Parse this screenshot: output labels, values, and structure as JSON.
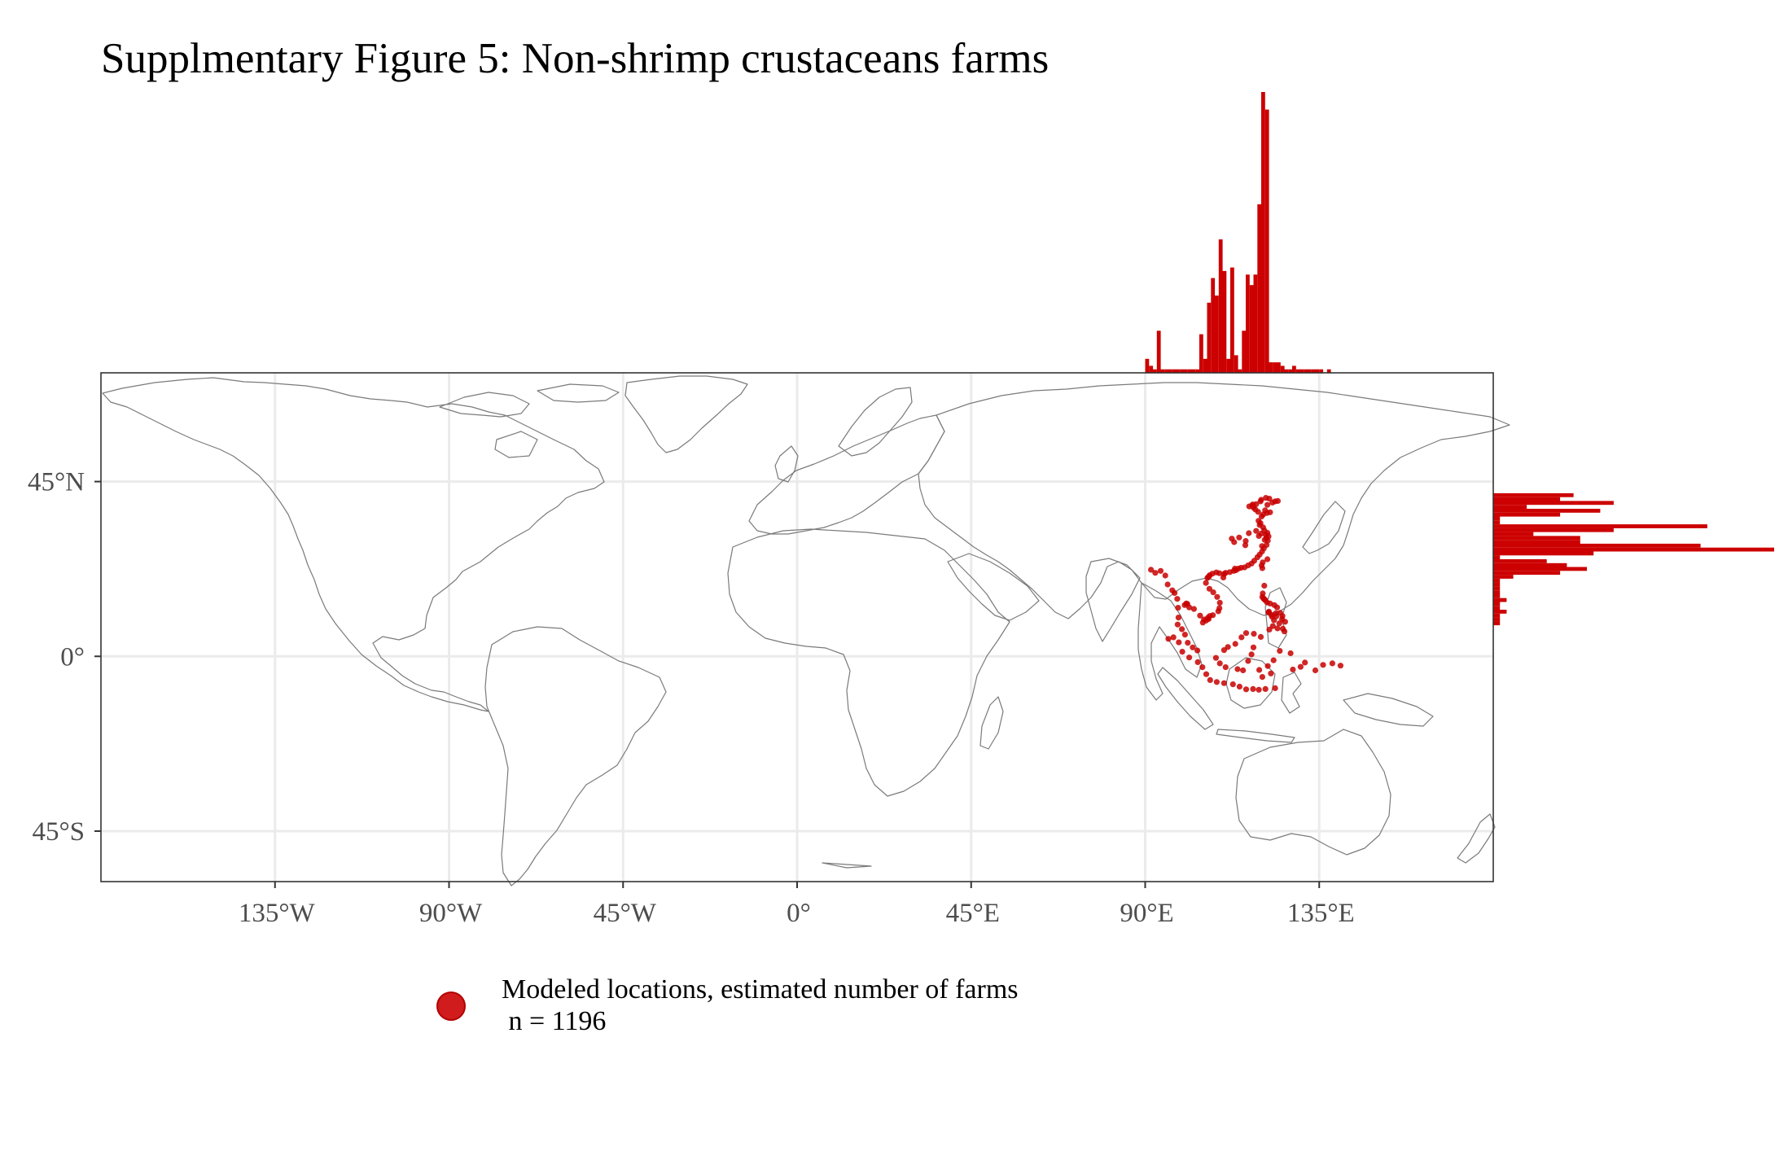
{
  "title": "Supplmentary Figure 5: Non-shrimp crustaceans farms",
  "colors": {
    "points": "#c80000",
    "bars": "#cc0000",
    "grid": "#ebebeb",
    "coast": "#7a7a7a",
    "panel_border": "#333333"
  },
  "chart_data": {
    "type": "scatter",
    "map_extent": {
      "lon": [
        -180,
        180
      ],
      "lat": [
        -58,
        73
      ]
    },
    "x_ticks": [
      {
        "value": -135,
        "label": "135°W"
      },
      {
        "value": -90,
        "label": "90°W"
      },
      {
        "value": -45,
        "label": "45°W"
      },
      {
        "value": 0,
        "label": "0°"
      },
      {
        "value": 45,
        "label": "45°E"
      },
      {
        "value": 90,
        "label": "90°E"
      },
      {
        "value": 135,
        "label": "135°E"
      }
    ],
    "y_ticks": [
      {
        "value": 45,
        "label": "45°N"
      },
      {
        "value": 0,
        "label": "0°"
      },
      {
        "value": -45,
        "label": "45°S"
      }
    ],
    "grid": true,
    "legend": {
      "label": "Modeled locations, estimated number of farms\n n = 1196",
      "position": "bottom"
    },
    "points": [
      [
        91.5,
        22.3
      ],
      [
        92.6,
        21.5
      ],
      [
        94.0,
        22.0
      ],
      [
        95.2,
        20.8
      ],
      [
        95.8,
        18.5
      ],
      [
        97.0,
        17.0
      ],
      [
        97.6,
        16.3
      ],
      [
        98.3,
        14.8
      ],
      [
        98.5,
        12.5
      ],
      [
        98.6,
        10.0
      ],
      [
        98.4,
        8.2
      ],
      [
        99.5,
        7.0
      ],
      [
        100.3,
        5.6
      ],
      [
        101.0,
        3.5
      ],
      [
        102.3,
        2.3
      ],
      [
        103.5,
        1.5
      ],
      [
        98.7,
        3.6
      ],
      [
        97.3,
        4.9
      ],
      [
        96.0,
        4.5
      ],
      [
        99.6,
        1.2
      ],
      [
        101.4,
        -0.3
      ],
      [
        103.6,
        -1.5
      ],
      [
        104.8,
        -2.8
      ],
      [
        105.8,
        -4.6
      ],
      [
        106.8,
        -6.1
      ],
      [
        108.5,
        -6.6
      ],
      [
        110.4,
        -6.9
      ],
      [
        112.7,
        -7.2
      ],
      [
        114.4,
        -7.8
      ],
      [
        116.1,
        -8.5
      ],
      [
        117.9,
        -8.4
      ],
      [
        119.4,
        -8.6
      ],
      [
        121.1,
        -8.4
      ],
      [
        123.6,
        -8.2
      ],
      [
        108.3,
        -0.4
      ],
      [
        109.3,
        -1.8
      ],
      [
        110.8,
        -2.8
      ],
      [
        113.9,
        -3.3
      ],
      [
        116.6,
        -1.2
      ],
      [
        117.5,
        0.5
      ],
      [
        118.0,
        2.3
      ],
      [
        119.5,
        -3.5
      ],
      [
        120.3,
        -5.3
      ],
      [
        121.7,
        -2.5
      ],
      [
        122.5,
        -4.4
      ],
      [
        123.2,
        -1.0
      ],
      [
        124.8,
        1.4
      ],
      [
        127.6,
        0.8
      ],
      [
        128.2,
        -3.4
      ],
      [
        130.2,
        -2.7
      ],
      [
        131.3,
        -1.6
      ],
      [
        134.0,
        -3.6
      ],
      [
        136.0,
        -2.2
      ],
      [
        138.4,
        -1.8
      ],
      [
        140.5,
        -2.4
      ],
      [
        115.3,
        -3.6
      ],
      [
        100.6,
        13.6
      ],
      [
        100.2,
        13.2
      ],
      [
        101.4,
        12.6
      ],
      [
        102.6,
        12.2
      ],
      [
        100.9,
        13.5
      ],
      [
        104.2,
        10.5
      ],
      [
        105.2,
        9.5
      ],
      [
        106.2,
        9.9
      ],
      [
        106.7,
        10.4
      ],
      [
        105.7,
        9.2
      ],
      [
        104.9,
        8.7
      ],
      [
        106.4,
        9.6
      ],
      [
        107.5,
        10.6
      ],
      [
        108.9,
        11.6
      ],
      [
        109.2,
        12.4
      ],
      [
        109.3,
        13.8
      ],
      [
        108.6,
        15.3
      ],
      [
        107.6,
        16.5
      ],
      [
        106.6,
        17.4
      ],
      [
        105.7,
        18.9
      ],
      [
        106.3,
        20.4
      ],
      [
        106.7,
        20.9
      ],
      [
        107.4,
        21.3
      ],
      [
        106.1,
        20.2
      ],
      [
        106.5,
        20.6
      ],
      [
        108.4,
        21.6
      ],
      [
        109.2,
        21.4
      ],
      [
        110.4,
        21.2
      ],
      [
        110.2,
        20.3
      ],
      [
        110.8,
        21.5
      ],
      [
        111.9,
        21.7
      ],
      [
        112.9,
        22.0
      ],
      [
        113.5,
        22.2
      ],
      [
        113.2,
        22.6
      ],
      [
        114.1,
        22.6
      ],
      [
        114.8,
        22.8
      ],
      [
        115.7,
        22.9
      ],
      [
        116.6,
        23.4
      ],
      [
        117.5,
        23.9
      ],
      [
        118.2,
        24.6
      ],
      [
        119.0,
        25.5
      ],
      [
        119.6,
        26.2
      ],
      [
        120.2,
        27.0
      ],
      [
        120.7,
        27.8
      ],
      [
        121.4,
        28.7
      ],
      [
        121.7,
        29.8
      ],
      [
        121.3,
        30.5
      ],
      [
        121.9,
        30.9
      ],
      [
        121.2,
        31.3
      ],
      [
        121.6,
        31.8
      ],
      [
        120.8,
        32.4
      ],
      [
        120.5,
        33.2
      ],
      [
        119.8,
        34.3
      ],
      [
        119.3,
        34.9
      ],
      [
        120.1,
        36.0
      ],
      [
        120.5,
        36.5
      ],
      [
        121.5,
        36.9
      ],
      [
        122.3,
        37.1
      ],
      [
        121.0,
        37.6
      ],
      [
        119.2,
        37.2
      ],
      [
        118.5,
        37.8
      ],
      [
        118.0,
        38.3
      ],
      [
        117.8,
        39.1
      ],
      [
        118.7,
        39.2
      ],
      [
        119.8,
        39.9
      ],
      [
        121.2,
        40.8
      ],
      [
        122.1,
        40.6
      ],
      [
        121.6,
        39.0
      ],
      [
        122.9,
        39.6
      ],
      [
        123.6,
        39.9
      ],
      [
        124.3,
        40.0
      ],
      [
        116.9,
        38.6
      ],
      [
        117.7,
        38.8
      ],
      [
        120.0,
        40.3
      ],
      [
        119.6,
        33.8
      ],
      [
        118.7,
        32.3
      ],
      [
        120.0,
        31.6
      ],
      [
        119.4,
        31.0
      ],
      [
        120.9,
        30.0
      ],
      [
        116.0,
        29.7
      ],
      [
        114.3,
        30.6
      ],
      [
        113.0,
        29.4
      ],
      [
        112.4,
        30.3
      ],
      [
        115.9,
        28.6
      ],
      [
        116.8,
        31.7
      ],
      [
        120.2,
        28.4
      ],
      [
        121.6,
        25.0
      ],
      [
        120.3,
        22.7
      ],
      [
        120.1,
        23.4
      ],
      [
        120.4,
        24.2
      ],
      [
        120.8,
        18.2
      ],
      [
        120.4,
        16.2
      ],
      [
        120.3,
        15.3
      ],
      [
        120.8,
        14.7
      ],
      [
        121.0,
        14.5
      ],
      [
        120.6,
        14.9
      ],
      [
        121.5,
        13.9
      ],
      [
        122.3,
        13.6
      ],
      [
        123.4,
        13.2
      ],
      [
        124.1,
        12.6
      ],
      [
        123.8,
        11.1
      ],
      [
        122.6,
        10.7
      ],
      [
        122.0,
        11.5
      ],
      [
        124.9,
        11.2
      ],
      [
        125.5,
        10.4
      ],
      [
        123.9,
        10.3
      ],
      [
        123.3,
        9.3
      ],
      [
        121.9,
        11.3
      ],
      [
        124.7,
        8.5
      ],
      [
        125.6,
        7.1
      ],
      [
        126.2,
        8.9
      ],
      [
        123.0,
        7.8
      ],
      [
        122.1,
        6.9
      ],
      [
        119.9,
        5.0
      ],
      [
        118.1,
        5.8
      ],
      [
        116.1,
        6.0
      ],
      [
        114.9,
        4.9
      ],
      [
        113.3,
        3.2
      ],
      [
        111.4,
        2.4
      ],
      [
        110.4,
        1.6
      ],
      [
        125.4,
        9.6
      ],
      [
        126.0,
        6.4
      ],
      [
        124.2,
        7.2
      ],
      [
        122.8,
        10.2
      ]
    ],
    "lon_histogram": {
      "bin_width_deg": 1,
      "bins": [
        {
          "lon": 90,
          "count": 4
        },
        {
          "lon": 91,
          "count": 2
        },
        {
          "lon": 92,
          "count": 1
        },
        {
          "lon": 93,
          "count": 12
        },
        {
          "lon": 94,
          "count": 1
        },
        {
          "lon": 95,
          "count": 1
        },
        {
          "lon": 96,
          "count": 1
        },
        {
          "lon": 97,
          "count": 1
        },
        {
          "lon": 98,
          "count": 1
        },
        {
          "lon": 99,
          "count": 1
        },
        {
          "lon": 100,
          "count": 1
        },
        {
          "lon": 101,
          "count": 1
        },
        {
          "lon": 102,
          "count": 1
        },
        {
          "lon": 103,
          "count": 1
        },
        {
          "lon": 104,
          "count": 11
        },
        {
          "lon": 105,
          "count": 4
        },
        {
          "lon": 106,
          "count": 20
        },
        {
          "lon": 107,
          "count": 27
        },
        {
          "lon": 108,
          "count": 22
        },
        {
          "lon": 109,
          "count": 38
        },
        {
          "lon": 110,
          "count": 29
        },
        {
          "lon": 111,
          "count": 4
        },
        {
          "lon": 112,
          "count": 30
        },
        {
          "lon": 113,
          "count": 5
        },
        {
          "lon": 114,
          "count": 1
        },
        {
          "lon": 115,
          "count": 12
        },
        {
          "lon": 116,
          "count": 28
        },
        {
          "lon": 117,
          "count": 25
        },
        {
          "lon": 118,
          "count": 28
        },
        {
          "lon": 119,
          "count": 48
        },
        {
          "lon": 120,
          "count": 80
        },
        {
          "lon": 121,
          "count": 75
        },
        {
          "lon": 122,
          "count": 3
        },
        {
          "lon": 123,
          "count": 3
        },
        {
          "lon": 124,
          "count": 3
        },
        {
          "lon": 125,
          "count": 2
        },
        {
          "lon": 126,
          "count": 1
        },
        {
          "lon": 127,
          "count": 1
        },
        {
          "lon": 128,
          "count": 2
        },
        {
          "lon": 129,
          "count": 1
        },
        {
          "lon": 130,
          "count": 1
        },
        {
          "lon": 131,
          "count": 1
        },
        {
          "lon": 132,
          "count": 1
        },
        {
          "lon": 133,
          "count": 1
        },
        {
          "lon": 134,
          "count": 1
        },
        {
          "lon": 135,
          "count": 1
        },
        {
          "lon": 137,
          "count": 1
        }
      ]
    },
    "lat_histogram": {
      "bin_width_deg": 1,
      "bins": [
        {
          "lat": 41,
          "count": 12
        },
        {
          "lat": 40,
          "count": 10
        },
        {
          "lat": 39,
          "count": 18
        },
        {
          "lat": 38,
          "count": 5
        },
        {
          "lat": 37,
          "count": 16
        },
        {
          "lat": 36,
          "count": 10
        },
        {
          "lat": 35,
          "count": 1
        },
        {
          "lat": 34,
          "count": 1
        },
        {
          "lat": 33,
          "count": 32
        },
        {
          "lat": 32,
          "count": 18
        },
        {
          "lat": 31,
          "count": 6
        },
        {
          "lat": 30,
          "count": 13
        },
        {
          "lat": 29,
          "count": 13
        },
        {
          "lat": 28,
          "count": 31
        },
        {
          "lat": 27,
          "count": 42
        },
        {
          "lat": 26,
          "count": 15
        },
        {
          "lat": 25,
          "count": 1
        },
        {
          "lat": 24,
          "count": 8
        },
        {
          "lat": 23,
          "count": 11
        },
        {
          "lat": 22,
          "count": 14
        },
        {
          "lat": 21,
          "count": 10
        },
        {
          "lat": 20,
          "count": 3
        },
        {
          "lat": 19,
          "count": 1
        },
        {
          "lat": 18,
          "count": 1
        },
        {
          "lat": 17,
          "count": 1
        },
        {
          "lat": 16,
          "count": 1
        },
        {
          "lat": 15,
          "count": 1
        },
        {
          "lat": 14,
          "count": 2
        },
        {
          "lat": 13,
          "count": 1
        },
        {
          "lat": 12,
          "count": 1
        },
        {
          "lat": 11,
          "count": 2
        },
        {
          "lat": 10,
          "count": 1
        },
        {
          "lat": 9,
          "count": 1
        },
        {
          "lat": 8,
          "count": 1
        }
      ]
    }
  }
}
